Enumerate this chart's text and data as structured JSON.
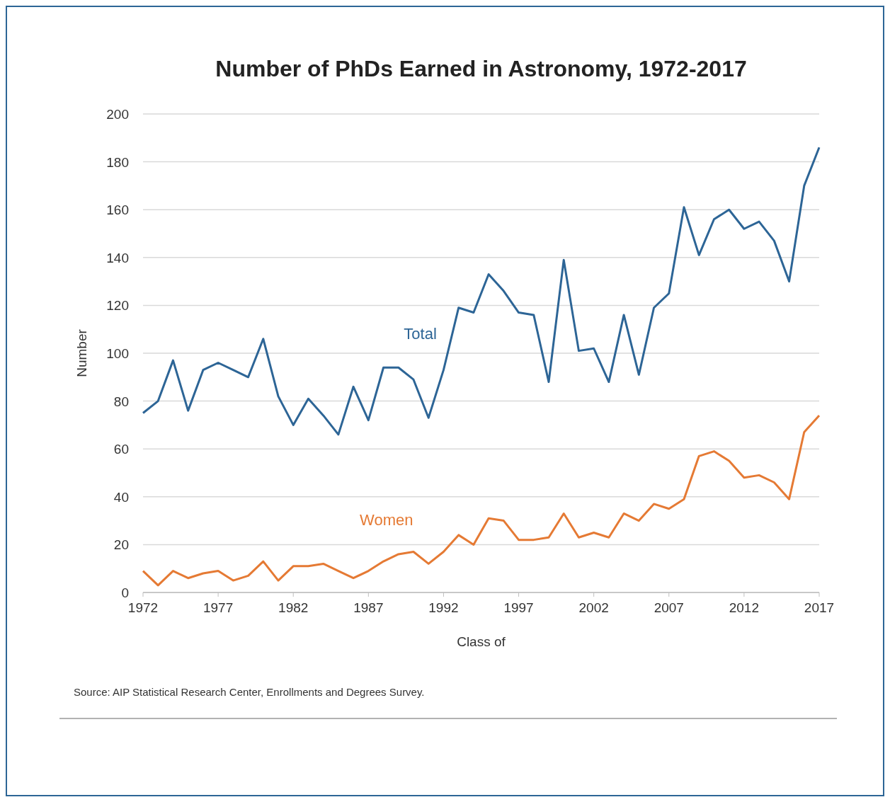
{
  "chart_data": {
    "type": "line",
    "title": "Number of PhDs Earned in Astronomy, 1972-2017",
    "xlabel": "Class of",
    "ylabel": "Number",
    "x": [
      1972,
      1973,
      1974,
      1975,
      1976,
      1977,
      1978,
      1979,
      1980,
      1981,
      1982,
      1983,
      1984,
      1985,
      1986,
      1987,
      1988,
      1989,
      1990,
      1991,
      1992,
      1993,
      1994,
      1995,
      1996,
      1997,
      1998,
      1999,
      2000,
      2001,
      2002,
      2003,
      2004,
      2005,
      2006,
      2007,
      2008,
      2009,
      2010,
      2011,
      2012,
      2013,
      2014,
      2015,
      2016,
      2017
    ],
    "series": [
      {
        "name": "Total",
        "color": "#2d6596",
        "values": [
          75,
          80,
          97,
          76,
          93,
          96,
          93,
          90,
          106,
          82,
          70,
          81,
          74,
          66,
          86,
          72,
          94,
          94,
          89,
          73,
          93,
          119,
          117,
          133,
          126,
          117,
          116,
          88,
          139,
          101,
          102,
          88,
          116,
          91,
          119,
          125,
          161,
          141,
          156,
          160,
          152,
          155,
          147,
          130,
          170,
          186
        ]
      },
      {
        "name": "Women",
        "color": "#e57a34",
        "values": [
          9,
          3,
          9,
          6,
          8,
          9,
          5,
          7,
          13,
          5,
          11,
          11,
          12,
          9,
          6,
          9,
          13,
          16,
          17,
          12,
          17,
          24,
          20,
          31,
          30,
          22,
          22,
          23,
          33,
          23,
          25,
          23,
          33,
          30,
          37,
          35,
          39,
          57,
          59,
          55,
          48,
          49,
          46,
          39,
          67,
          74
        ]
      }
    ],
    "xlim": [
      1972,
      2017
    ],
    "xticks": [
      1972,
      1977,
      1982,
      1987,
      1992,
      1997,
      2002,
      2007,
      2012,
      2017
    ],
    "ylim": [
      0,
      200
    ],
    "yticks": [
      0,
      20,
      40,
      60,
      80,
      100,
      120,
      140,
      160,
      180,
      200
    ],
    "grid": "y",
    "marker": "none",
    "line_style": "solid",
    "annotations": [
      "Source: AIP Statistical Research Center, Enrollments and Degrees Survey."
    ]
  }
}
